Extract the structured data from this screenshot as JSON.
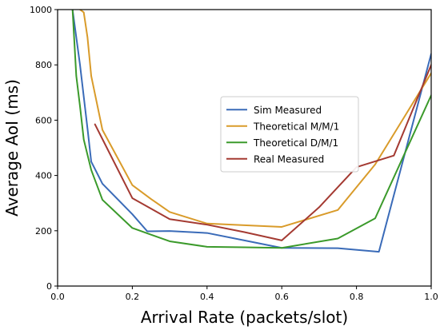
{
  "chart_data": {
    "type": "line",
    "title": "",
    "xlabel": "Arrival Rate (packets/slot)",
    "ylabel": "Average AoI (ms)",
    "xlim": [
      0.0,
      1.0
    ],
    "ylim": [
      0,
      1000
    ],
    "xticks": [
      "0.0",
      "0.2",
      "0.4",
      "0.6",
      "0.8",
      "1.0"
    ],
    "yticks": [
      "0",
      "200",
      "400",
      "600",
      "800",
      "1000"
    ],
    "grid": false,
    "legend_position": "center-right",
    "series": [
      {
        "name": "Sim Measured",
        "color": "#3a6bb8",
        "x": [
          0.04,
          0.06,
          0.08,
          0.09,
          0.12,
          0.2,
          0.24,
          0.3,
          0.4,
          0.5,
          0.6,
          0.75,
          0.86,
          1.0
        ],
        "y": [
          1000,
          800,
          570,
          450,
          370,
          260,
          198,
          199,
          192,
          165,
          138,
          137,
          124,
          840
        ]
      },
      {
        "name": "Theoretical M/M/1",
        "color": "#d99b2a",
        "x": [
          0.06,
          0.07,
          0.08,
          0.09,
          0.12,
          0.2,
          0.25,
          0.3,
          0.4,
          0.5,
          0.6,
          0.75,
          0.85,
          1.0
        ],
        "y": [
          1000,
          990,
          900,
          760,
          565,
          365,
          315,
          268,
          226,
          220,
          214,
          275,
          440,
          770
        ]
      },
      {
        "name": "Theoretical D/M/1",
        "color": "#3b9a2b",
        "x": [
          0.04,
          0.05,
          0.06,
          0.07,
          0.09,
          0.12,
          0.2,
          0.25,
          0.3,
          0.4,
          0.5,
          0.6,
          0.75,
          0.85,
          1.0
        ],
        "y": [
          1000,
          760,
          650,
          530,
          420,
          312,
          210,
          186,
          162,
          142,
          140,
          138,
          172,
          245,
          690
        ]
      },
      {
        "name": "Real Measured",
        "color": "#a43a32",
        "x": [
          0.1,
          0.2,
          0.3,
          0.4,
          0.5,
          0.6,
          0.7,
          0.8,
          0.9,
          1.0
        ],
        "y": [
          585,
          318,
          242,
          222,
          195,
          165,
          285,
          430,
          472,
          800
        ]
      }
    ]
  }
}
